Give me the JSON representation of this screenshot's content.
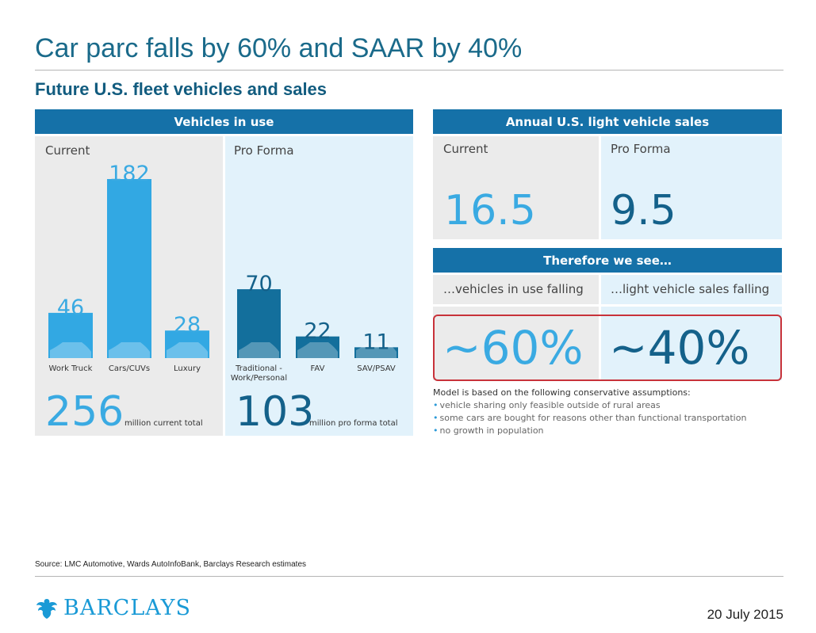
{
  "title": "Car parc falls by 60% and SAAR by 40%",
  "subtitle": "Future U.S. fleet vehicles and sales",
  "vehicles_panel": {
    "header": "Vehicles in use",
    "current_label": "Current",
    "proforma_label": "Pro Forma",
    "current_total": "256",
    "current_total_note": "million current total",
    "proforma_total": "103",
    "proforma_total_note": "million pro forma total"
  },
  "sales_panel": {
    "header": "Annual U.S. light vehicle sales",
    "current_label": "Current",
    "current_value": "16.5",
    "proforma_label": "Pro Forma",
    "proforma_value": "9.5"
  },
  "therefore_panel": {
    "header": "Therefore we see…",
    "left_label": "…vehicles in use falling",
    "left_value": "~60%",
    "right_label": "…light vehicle sales falling",
    "right_value": "~40%"
  },
  "assumptions": {
    "intro": "Model is based on the following conservative assumptions:",
    "items": [
      "vehicle sharing only feasible outside of rural areas",
      "some cars are bought for reasons other than functional transportation",
      "no growth in population"
    ]
  },
  "chart_data": [
    {
      "type": "bar",
      "title": "Current",
      "categories": [
        "Work Truck",
        "Cars/CUVs",
        "Luxury"
      ],
      "values": [
        46,
        182,
        28
      ],
      "value_labels": [
        "46",
        "182",
        "28"
      ],
      "unit": "million vehicles",
      "ylim": [
        0,
        182
      ],
      "color": "#32a8e3",
      "label_color": "#3aaae2"
    },
    {
      "type": "bar",
      "title": "Pro Forma",
      "categories": [
        "Traditional -\nWork/Personal",
        "FAV",
        "SAV/PSAV"
      ],
      "values": [
        70,
        22,
        11
      ],
      "value_labels": [
        "70",
        "22",
        "11"
      ],
      "unit": "million vehicles",
      "ylim": [
        0,
        182
      ],
      "color": "#136f9c",
      "label_color": "#14618a"
    }
  ],
  "colors": {
    "title": "#1a6a8a",
    "header_bg": "#1571a8",
    "accent_light": "#32a8e3",
    "accent_dark": "#136f9c",
    "highlight_border": "#c8323a"
  },
  "footer": {
    "source": "Source: LMC Automotive, Wards AutoInfoBank, Barclays Research estimates",
    "logo_text": "BARCLAYS",
    "date": "20 July 2015"
  }
}
